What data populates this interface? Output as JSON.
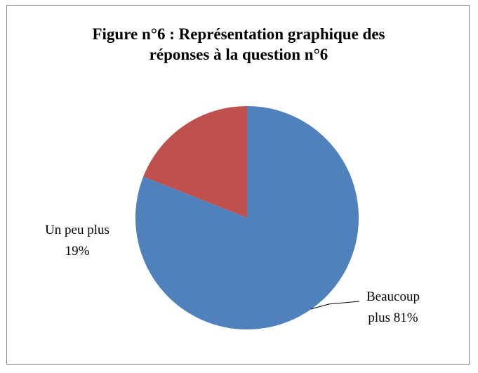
{
  "chart_data": {
    "type": "pie",
    "title": "Figure n°6 : Représentation graphique des réponses à la question n°6",
    "categories": [
      "Beaucoup plus",
      "Un peu plus"
    ],
    "values": [
      81,
      19
    ],
    "value_labels": [
      "81%",
      "19%"
    ],
    "colors": [
      "#4f81bd",
      "#c0504d"
    ]
  }
}
